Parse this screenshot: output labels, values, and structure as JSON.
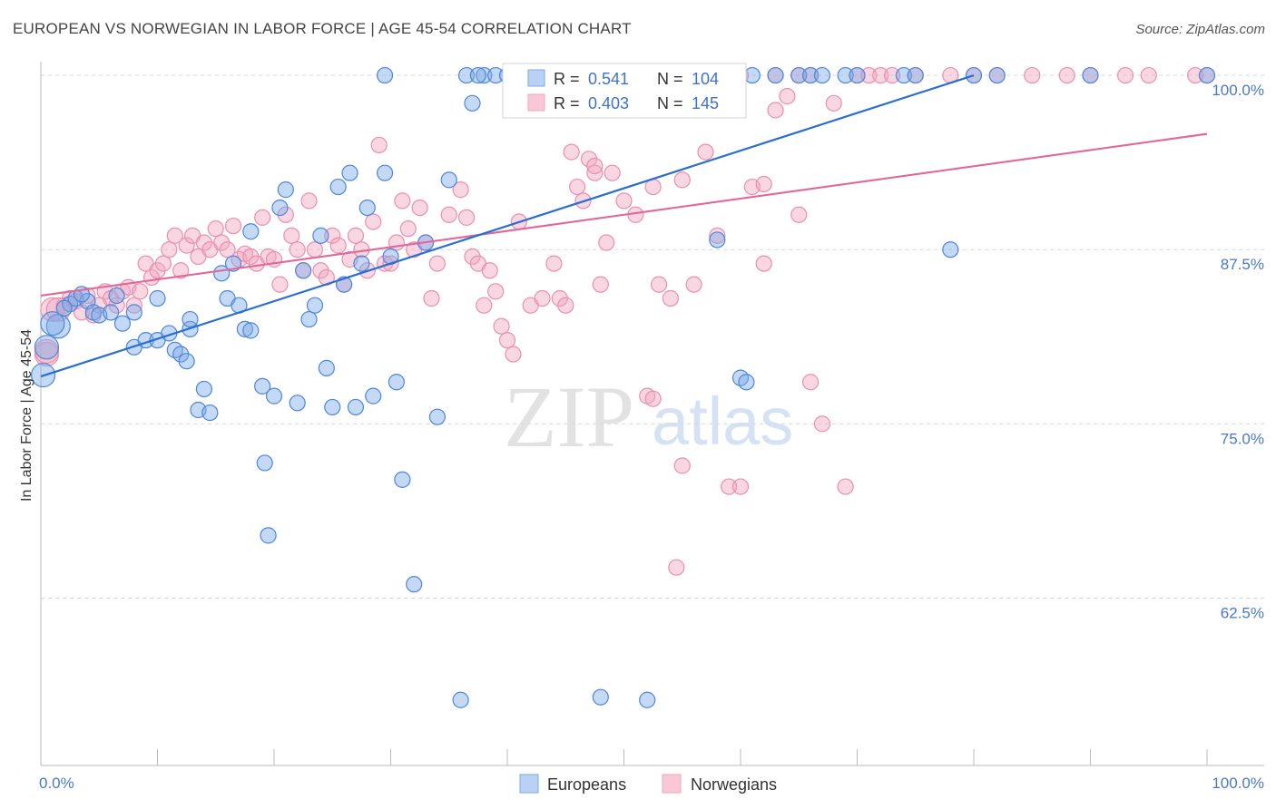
{
  "title": "EUROPEAN VS NORWEGIAN IN LABOR FORCE | AGE 45-54 CORRELATION CHART",
  "source": "Source: ZipAtlas.com",
  "watermark": {
    "zip": "ZIP",
    "atlas": "atlas"
  },
  "legend_top": [
    {
      "r_label": "R =",
      "r_value": "0.541",
      "n_label": "N =",
      "n_value": "104"
    },
    {
      "r_label": "R =",
      "r_value": "0.403",
      "n_label": "N =",
      "n_value": "145"
    }
  ],
  "legend_bottom": [
    "Europeans",
    "Norwegians"
  ],
  "chart_data": {
    "type": "scatter",
    "title": "EUROPEAN VS NORWEGIAN IN LABOR FORCE | AGE 45-54 CORRELATION CHART",
    "xlabel": "",
    "ylabel": "In Labor Force | Age 45-54",
    "xlim": [
      0,
      100
    ],
    "ylim": [
      50.5,
      101.5
    ],
    "x_tick_labels": [
      "0.0%",
      "100.0%"
    ],
    "y_ticks": [
      100,
      87.5,
      75,
      62.5
    ],
    "y_tick_labels": [
      "100.0%",
      "87.5%",
      "75.0%",
      "62.5%"
    ],
    "colors": {
      "europeans": "#7aaae8",
      "europeans_line": "#2a6fd0",
      "norwegians": "#f2a6be",
      "norwegians_line": "#e0699a"
    },
    "series": [
      {
        "name": "Europeans",
        "r": 0.541,
        "n": 104,
        "trend": {
          "x": [
            0,
            80
          ],
          "y": [
            78.4,
            100
          ]
        },
        "points": [
          [
            0.2,
            78.5
          ],
          [
            1.5,
            82
          ],
          [
            0.5,
            80.5
          ],
          [
            2.5,
            83.6
          ],
          [
            3,
            84
          ],
          [
            4,
            83.8
          ],
          [
            4.5,
            83
          ],
          [
            5,
            82.8
          ],
          [
            6,
            83
          ],
          [
            7,
            82.2
          ],
          [
            8,
            80.5
          ],
          [
            9,
            81
          ],
          [
            8,
            83
          ],
          [
            10,
            81
          ],
          [
            10,
            84
          ],
          [
            11,
            81.5
          ],
          [
            11.5,
            80.3
          ],
          [
            12,
            80
          ],
          [
            12.5,
            79.5
          ],
          [
            12.8,
            81.8
          ],
          [
            12.8,
            82.5
          ],
          [
            13.5,
            76
          ],
          [
            14,
            77.5
          ],
          [
            14.5,
            75.8
          ],
          [
            15.5,
            85.8
          ],
          [
            16,
            84
          ],
          [
            16.5,
            86.5
          ],
          [
            17,
            83.5
          ],
          [
            17.5,
            81.8
          ],
          [
            18,
            81.7
          ],
          [
            18,
            88.8
          ],
          [
            19,
            77.7
          ],
          [
            19.2,
            72.2
          ],
          [
            19.5,
            67
          ],
          [
            20,
            77
          ],
          [
            20.5,
            90.5
          ],
          [
            21,
            91.8
          ],
          [
            22,
            76.5
          ],
          [
            22.5,
            86
          ],
          [
            23,
            82.5
          ],
          [
            23.5,
            83.5
          ],
          [
            24,
            88.5
          ],
          [
            24.5,
            79
          ],
          [
            25,
            76.2
          ],
          [
            25.5,
            92
          ],
          [
            26,
            85
          ],
          [
            26.5,
            93
          ],
          [
            27,
            76.2
          ],
          [
            27.5,
            86.5
          ],
          [
            28,
            90.5
          ],
          [
            28.5,
            77
          ],
          [
            29.5,
            93
          ],
          [
            30,
            87
          ],
          [
            30.5,
            78
          ],
          [
            31,
            71
          ],
          [
            32,
            63.5
          ],
          [
            33,
            88
          ],
          [
            34,
            75.5
          ],
          [
            35,
            92.5
          ],
          [
            36,
            55.2
          ],
          [
            37,
            98
          ],
          [
            38,
            100
          ],
          [
            29.5,
            100
          ],
          [
            36.5,
            100
          ],
          [
            37.5,
            100
          ],
          [
            39,
            100
          ],
          [
            40,
            100
          ],
          [
            42,
            100
          ],
          [
            43,
            100
          ],
          [
            45,
            100
          ],
          [
            46,
            100
          ],
          [
            47,
            100
          ],
          [
            48,
            100
          ],
          [
            49,
            100
          ],
          [
            50,
            100
          ],
          [
            51,
            100
          ],
          [
            53,
            100
          ],
          [
            55,
            100
          ],
          [
            57,
            100
          ],
          [
            59,
            100
          ],
          [
            61,
            100
          ],
          [
            63,
            100
          ],
          [
            65,
            100
          ],
          [
            66,
            100
          ],
          [
            67,
            100
          ],
          [
            69,
            100
          ],
          [
            70,
            100
          ],
          [
            74,
            100
          ],
          [
            75,
            100
          ],
          [
            80,
            100
          ],
          [
            82,
            100
          ],
          [
            90,
            100
          ],
          [
            100,
            100
          ],
          [
            60,
            78.3
          ],
          [
            52,
            55.2
          ],
          [
            48,
            55.4
          ],
          [
            58,
            88.2
          ],
          [
            78,
            87.5
          ],
          [
            60.5,
            78
          ],
          [
            1,
            82.2
          ],
          [
            3.5,
            84.3
          ],
          [
            6.5,
            84.2
          ],
          [
            2,
            83.3
          ]
        ]
      },
      {
        "name": "Norwegians",
        "r": 0.403,
        "n": 145,
        "trend": {
          "x": [
            0,
            100
          ],
          "y": [
            84.2,
            95.8
          ]
        },
        "points": [
          [
            0.5,
            80
          ],
          [
            1,
            83.2
          ],
          [
            2,
            83.5
          ],
          [
            2.5,
            84
          ],
          [
            3,
            83.8
          ],
          [
            3.5,
            83
          ],
          [
            4,
            84.2
          ],
          [
            4.5,
            82.8
          ],
          [
            5,
            83.5
          ],
          [
            5.5,
            84.5
          ],
          [
            6,
            84
          ],
          [
            6.5,
            83.5
          ],
          [
            7,
            84.5
          ],
          [
            7.5,
            84.8
          ],
          [
            8,
            83.5
          ],
          [
            8.5,
            84.5
          ],
          [
            9,
            86.5
          ],
          [
            9.5,
            85.5
          ],
          [
            10,
            86
          ],
          [
            10.5,
            86.5
          ],
          [
            11,
            87.5
          ],
          [
            11.5,
            88.5
          ],
          [
            12,
            86
          ],
          [
            12.5,
            87.8
          ],
          [
            13,
            88.5
          ],
          [
            13.5,
            87
          ],
          [
            14,
            88
          ],
          [
            14.5,
            87.5
          ],
          [
            15,
            89
          ],
          [
            15.5,
            88
          ],
          [
            16,
            87.5
          ],
          [
            16.5,
            89.2
          ],
          [
            17,
            86.8
          ],
          [
            17.5,
            87.2
          ],
          [
            18,
            87
          ],
          [
            18.5,
            86.5
          ],
          [
            19,
            89.8
          ],
          [
            19.5,
            87
          ],
          [
            20,
            86.8
          ],
          [
            20.5,
            85
          ],
          [
            21,
            90
          ],
          [
            21.5,
            88.5
          ],
          [
            22,
            87.5
          ],
          [
            22.5,
            86
          ],
          [
            23,
            91
          ],
          [
            23.5,
            87.5
          ],
          [
            24,
            86
          ],
          [
            24.5,
            85.5
          ],
          [
            25,
            88.5
          ],
          [
            25.5,
            87.8
          ],
          [
            26,
            85
          ],
          [
            26.5,
            86.8
          ],
          [
            27,
            88.5
          ],
          [
            27.5,
            87.5
          ],
          [
            28,
            86
          ],
          [
            28.5,
            89.5
          ],
          [
            29,
            95
          ],
          [
            29.5,
            86.5
          ],
          [
            30,
            86.5
          ],
          [
            30.5,
            88
          ],
          [
            31,
            91
          ],
          [
            31.5,
            89
          ],
          [
            32,
            87.5
          ],
          [
            32.5,
            90.5
          ],
          [
            33,
            88
          ],
          [
            33.5,
            84
          ],
          [
            34,
            86.5
          ],
          [
            35,
            90
          ],
          [
            36,
            91.8
          ],
          [
            36.5,
            89.8
          ],
          [
            37,
            87
          ],
          [
            37.5,
            86.5
          ],
          [
            38,
            83.5
          ],
          [
            38.5,
            86
          ],
          [
            39,
            84.5
          ],
          [
            39.5,
            82
          ],
          [
            40,
            81
          ],
          [
            40.5,
            80
          ],
          [
            41,
            89.5
          ],
          [
            42,
            83.5
          ],
          [
            43,
            84
          ],
          [
            44,
            86.5
          ],
          [
            44.5,
            84
          ],
          [
            45,
            83.5
          ],
          [
            45.5,
            94.5
          ],
          [
            46,
            92
          ],
          [
            46.5,
            91
          ],
          [
            47,
            94
          ],
          [
            47.5,
            93
          ],
          [
            48,
            85
          ],
          [
            48.5,
            88
          ],
          [
            49,
            93
          ],
          [
            50,
            91
          ],
          [
            51,
            90
          ],
          [
            52,
            77
          ],
          [
            52.5,
            92
          ],
          [
            53,
            85
          ],
          [
            54,
            84
          ],
          [
            55,
            72
          ],
          [
            56,
            85
          ],
          [
            57,
            94.5
          ],
          [
            58,
            88.5
          ],
          [
            59,
            70.5
          ],
          [
            60,
            70.5
          ],
          [
            61,
            92
          ],
          [
            62,
            86.5
          ],
          [
            63,
            97.5
          ],
          [
            64,
            98.5
          ],
          [
            65,
            90
          ],
          [
            66,
            78
          ],
          [
            67,
            75
          ],
          [
            68,
            98
          ],
          [
            69,
            70.5
          ],
          [
            70,
            100
          ],
          [
            71,
            100
          ],
          [
            72,
            100
          ],
          [
            73,
            100
          ],
          [
            75,
            100
          ],
          [
            78,
            100
          ],
          [
            80,
            100
          ],
          [
            82,
            100
          ],
          [
            85,
            100
          ],
          [
            88,
            100
          ],
          [
            90,
            100
          ],
          [
            93,
            100
          ],
          [
            95,
            100
          ],
          [
            99,
            100
          ],
          [
            100,
            100
          ],
          [
            0.5,
            80.2
          ],
          [
            1.5,
            83.2
          ],
          [
            54.5,
            64.7
          ],
          [
            52.5,
            76.8
          ],
          [
            47.5,
            93.5
          ],
          [
            62,
            92.2
          ],
          [
            55,
            92.5
          ],
          [
            42.5,
            99.8
          ],
          [
            46.5,
            99.8
          ],
          [
            45,
            100
          ],
          [
            50,
            100
          ],
          [
            52.5,
            100
          ],
          [
            55,
            100
          ],
          [
            58,
            100
          ],
          [
            60,
            100
          ],
          [
            63,
            100
          ],
          [
            65,
            100
          ],
          [
            66,
            100
          ]
        ]
      }
    ]
  }
}
